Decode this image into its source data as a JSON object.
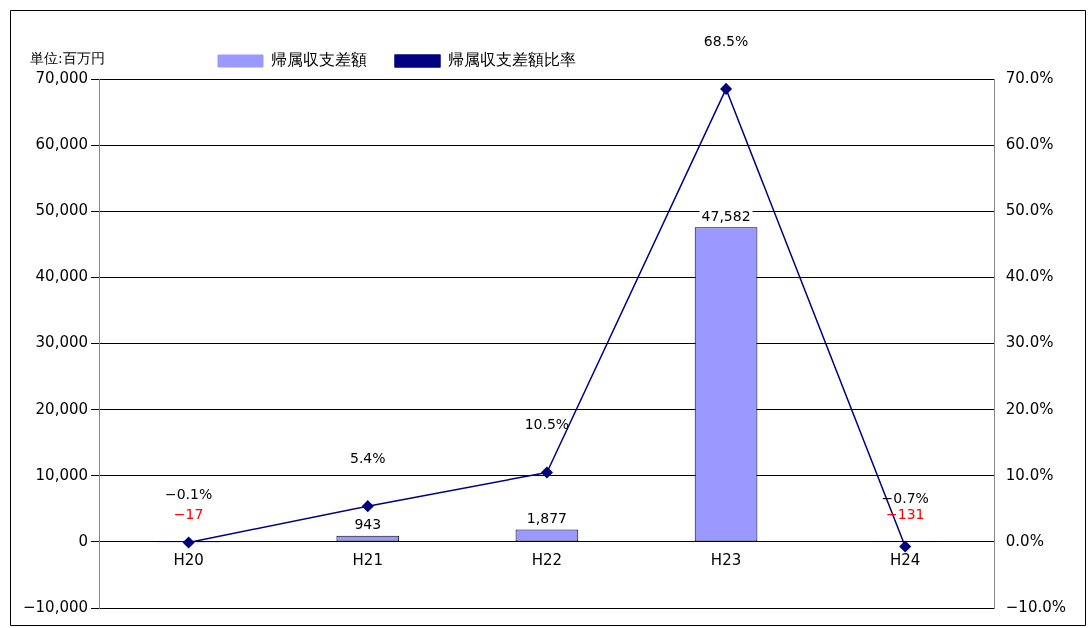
{
  "chart_data": {
    "type": "bar",
    "categories": [
      "H20",
      "H21",
      "H22",
      "H23",
      "H24"
    ],
    "annotations": [
      "単位:百万円"
    ],
    "series": [
      {
        "name": "帰属収支差額",
        "color": "#9999ff",
        "values": [
          -17,
          943,
          1877,
          47582,
          -131
        ],
        "value_labels": [
          "−17",
          "943",
          "1,877",
          "47,582",
          "−131"
        ]
      },
      {
        "name": "帰属収支差額比率",
        "type": "line",
        "axis": "y2",
        "color": "#000080",
        "values": [
          -0.1,
          5.4,
          10.5,
          68.5,
          -0.7
        ],
        "value_labels": [
          "−0.1%",
          "5.4%",
          "10.5%",
          "68.5%",
          "−0.7%"
        ],
        "marker": "diamond"
      }
    ],
    "ylim": [
      -10000,
      70000
    ],
    "yticks": [
      {
        "value": -10000,
        "label": "−10,000"
      },
      {
        "value": 0,
        "label": "0"
      },
      {
        "value": 10000,
        "label": "10,000"
      },
      {
        "value": 20000,
        "label": "20,000"
      },
      {
        "value": 30000,
        "label": "30,000"
      },
      {
        "value": 40000,
        "label": "40,000"
      },
      {
        "value": 50000,
        "label": "50,000"
      },
      {
        "value": 60000,
        "label": "60,000"
      },
      {
        "value": 70000,
        "label": "70,000"
      }
    ],
    "y2lim": [
      -10,
      70
    ],
    "y2ticks": [
      {
        "value": -10,
        "label": "−10.0%"
      },
      {
        "value": 0,
        "label": "0.0%"
      },
      {
        "value": 10,
        "label": "10.0%"
      },
      {
        "value": 20,
        "label": "20.0%"
      },
      {
        "value": 30,
        "label": "30.0%"
      },
      {
        "value": 40,
        "label": "40.0%"
      },
      {
        "value": 50,
        "label": "50.0%"
      },
      {
        "value": 60,
        "label": "60.0%"
      },
      {
        "value": 70,
        "label": "70.0%"
      }
    ],
    "grid": "y",
    "legend": "top left"
  }
}
